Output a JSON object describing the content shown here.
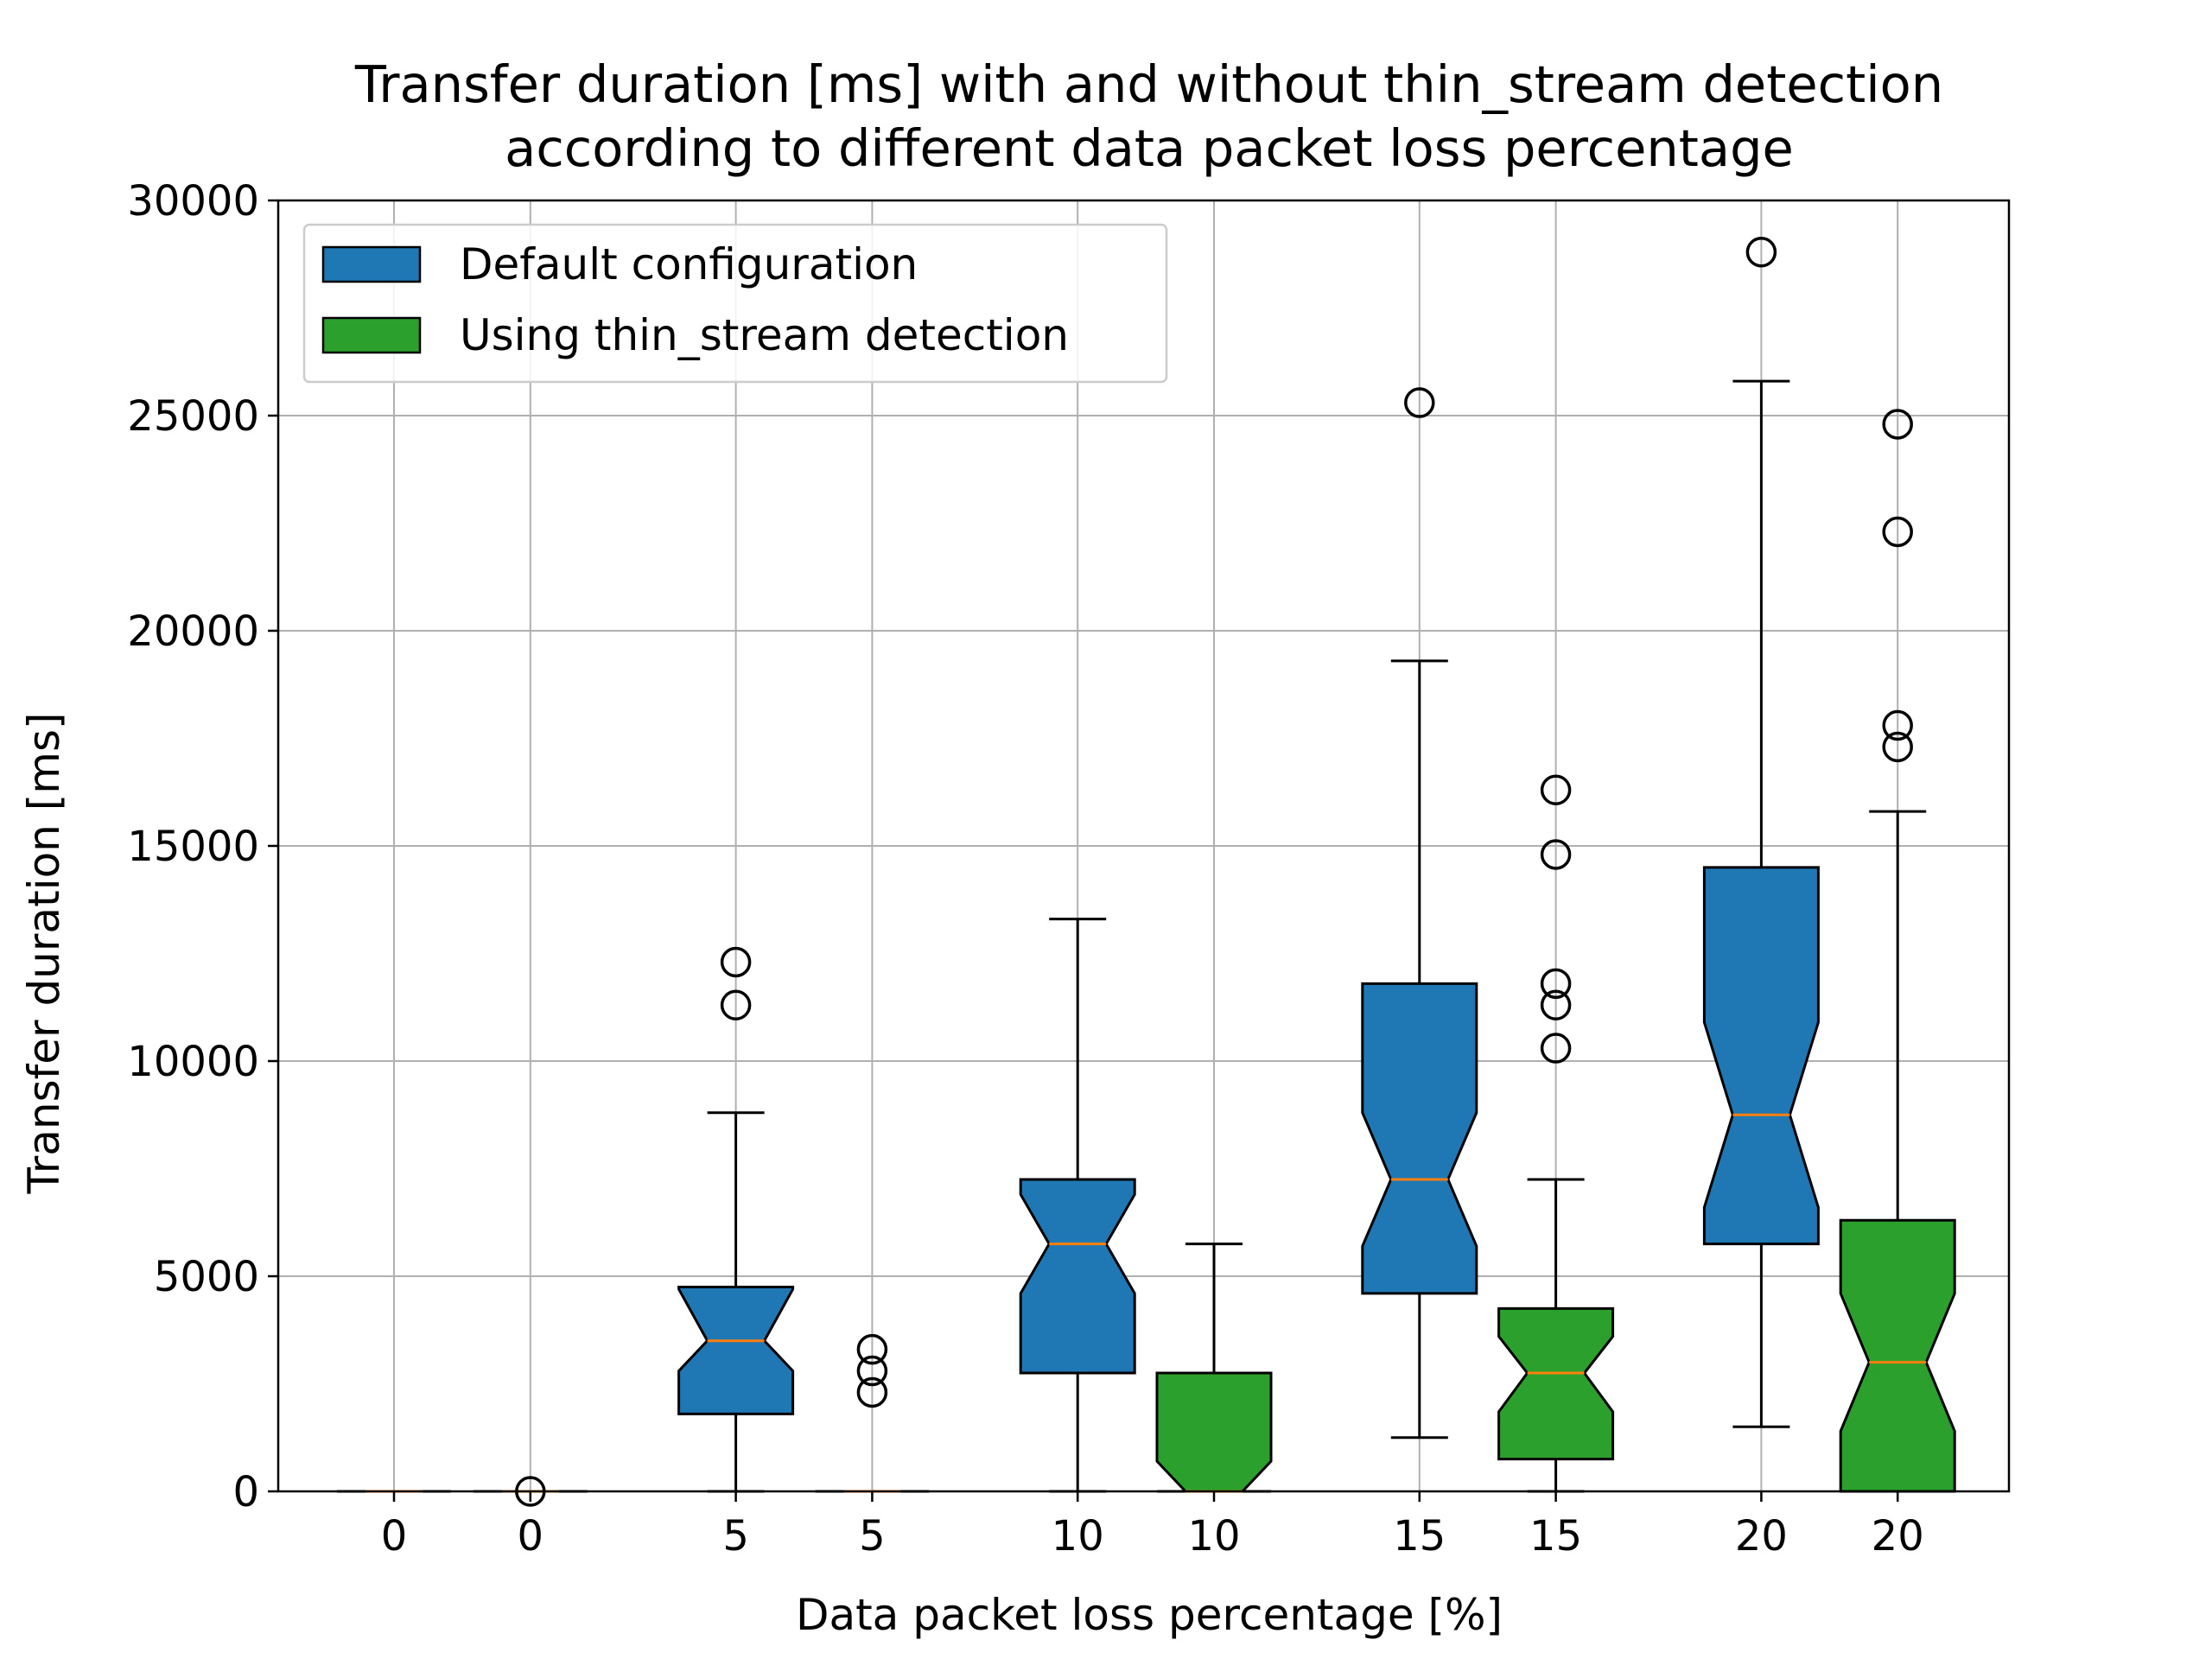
{
  "chart_data": {
    "type": "box",
    "title_line1": "Transfer duration [ms] with and without thin_stream detection",
    "title_line2": "according to different data packet loss percentage",
    "xlabel": "Data packet loss percentage [%]",
    "ylabel": "Transfer duration [ms]",
    "ylim": [
      0,
      30000
    ],
    "yticks": [
      0,
      5000,
      10000,
      15000,
      20000,
      25000,
      30000
    ],
    "ytick_labels": [
      "0",
      "5000",
      "10000",
      "15000",
      "20000",
      "25000",
      "30000"
    ],
    "grid": true,
    "notched": true,
    "legend": {
      "placement": "top-left",
      "entries": [
        {
          "label": "Default configuration",
          "color": "#1f77b4"
        },
        {
          "label": "Using thin_stream detection",
          "color": "#2ca02c"
        }
      ]
    },
    "median_color": "#ff7f0e",
    "boxes": [
      {
        "label": "0",
        "series": "Default configuration",
        "whisker_low": 0,
        "q1": 0,
        "median": 0,
        "q3": 0,
        "whisker_high": 0,
        "notch_low": 0,
        "notch_high": 0,
        "outliers": []
      },
      {
        "label": "0",
        "series": "Using thin_stream detection",
        "whisker_low": 0,
        "q1": 0,
        "median": 0,
        "q3": 0,
        "whisker_high": 0,
        "notch_low": 0,
        "notch_high": 0,
        "outliers": [
          0
        ]
      },
      {
        "label": "5",
        "series": "Default configuration",
        "whisker_low": 0,
        "q1": 1800,
        "median": 3500,
        "q3": 4750,
        "whisker_high": 8800,
        "notch_low": 2800,
        "notch_high": 4700,
        "outliers": [
          11300,
          12300
        ]
      },
      {
        "label": "5",
        "series": "Using thin_stream detection",
        "whisker_low": 0,
        "q1": 0,
        "median": 0,
        "q3": 0,
        "whisker_high": 0,
        "notch_low": 0,
        "notch_high": 0,
        "outliers": [
          2300,
          2800,
          3300
        ]
      },
      {
        "label": "10",
        "series": "Default configuration",
        "whisker_low": 0,
        "q1": 2750,
        "median": 5750,
        "q3": 7250,
        "whisker_high": 13300,
        "notch_low": 4600,
        "notch_high": 6900,
        "outliers": []
      },
      {
        "label": "10",
        "series": "Using thin_stream detection",
        "whisker_low": 0,
        "q1": 0,
        "median": 0,
        "q3": 2750,
        "whisker_high": 5750,
        "notch_low": 0,
        "notch_high": 700,
        "outliers": []
      },
      {
        "label": "15",
        "series": "Default configuration",
        "whisker_low": 1250,
        "q1": 4600,
        "median": 7250,
        "q3": 11800,
        "whisker_high": 19300,
        "notch_low": 5700,
        "notch_high": 8800,
        "outliers": [
          25300
        ]
      },
      {
        "label": "15",
        "series": "Using thin_stream detection",
        "whisker_low": 0,
        "q1": 750,
        "median": 2750,
        "q3": 4250,
        "whisker_high": 7250,
        "notch_low": 1850,
        "notch_high": 3600,
        "outliers": [
          10300,
          11300,
          11800,
          14800,
          16300
        ]
      },
      {
        "label": "20",
        "series": "Default configuration",
        "whisker_low": 1500,
        "q1": 5750,
        "median": 8750,
        "q3": 14500,
        "whisker_high": 25800,
        "notch_low": 6600,
        "notch_high": 10900,
        "outliers": [
          28800
        ]
      },
      {
        "label": "20",
        "series": "Using thin_stream detection",
        "whisker_low": 0,
        "q1": 0,
        "median": 3000,
        "q3": 6300,
        "whisker_high": 15800,
        "notch_low": 1400,
        "notch_high": 4600,
        "outliers": [
          17300,
          17800,
          22300,
          24800
        ]
      }
    ]
  }
}
